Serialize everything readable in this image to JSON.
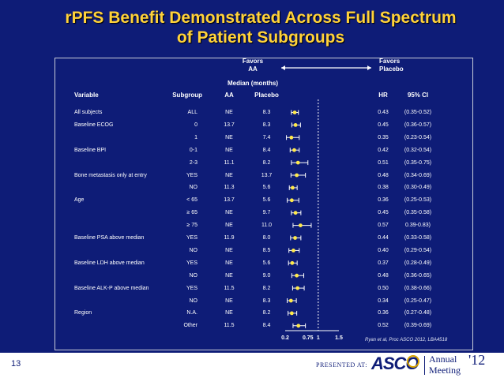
{
  "title": "rPFS Benefit Demonstrated Across Full Spectrum of Patient Subgroups",
  "favors_left": [
    "Favors",
    "AA"
  ],
  "favors_right": [
    "Favors",
    "Placebo"
  ],
  "median_header": "Median (months)",
  "columns": {
    "variable": "Variable",
    "subgroup": "Subgroup",
    "aa": "AA",
    "placebo": "Placebo",
    "hr": "HR",
    "ci": "95% CI"
  },
  "rows": [
    {
      "variable": "All subjects",
      "subgroup": "ALL",
      "aa": "NE",
      "placebo": "8.3",
      "hr": "0.43",
      "ci": "(0.35-0.52)",
      "hr_value": 0.43,
      "ci_low": 0.35,
      "ci_high": 0.52
    },
    {
      "variable": "Baseline ECOG",
      "subgroup": "0",
      "aa": "13.7",
      "placebo": "8.3",
      "hr": "0.45",
      "ci": "(0.36-0.57)",
      "hr_value": 0.45,
      "ci_low": 0.36,
      "ci_high": 0.57
    },
    {
      "variable": "",
      "subgroup": "1",
      "aa": "NE",
      "placebo": "7.4",
      "hr": "0.35",
      "ci": "(0.23-0.54)",
      "hr_value": 0.35,
      "ci_low": 0.23,
      "ci_high": 0.54
    },
    {
      "variable": "Baseline BPI",
      "subgroup": "0-1",
      "aa": "NE",
      "placebo": "8.4",
      "hr": "0.42",
      "ci": "(0.32-0.54)",
      "hr_value": 0.42,
      "ci_low": 0.32,
      "ci_high": 0.54
    },
    {
      "variable": "",
      "subgroup": "2-3",
      "aa": "11.1",
      "placebo": "8.2",
      "hr": "0.51",
      "ci": "(0.35-0.75)",
      "hr_value": 0.51,
      "ci_low": 0.35,
      "ci_high": 0.75
    },
    {
      "variable": "Bone metastasis only at entry",
      "subgroup": "YES",
      "aa": "NE",
      "placebo": "13.7",
      "hr": "0.48",
      "ci": "(0.34-0.69)",
      "hr_value": 0.48,
      "ci_low": 0.34,
      "ci_high": 0.69
    },
    {
      "variable": "",
      "subgroup": "NO",
      "aa": "11.3",
      "placebo": "5.6",
      "hr": "0.38",
      "ci": "(0.30-0.49)",
      "hr_value": 0.38,
      "ci_low": 0.3,
      "ci_high": 0.49
    },
    {
      "variable": "Age",
      "subgroup": "< 65",
      "aa": "13.7",
      "placebo": "5.6",
      "hr": "0.36",
      "ci": "(0.25-0.53)",
      "hr_value": 0.36,
      "ci_low": 0.25,
      "ci_high": 0.53
    },
    {
      "variable": "",
      "subgroup": "≥ 65",
      "aa": "NE",
      "placebo": "9.7",
      "hr": "0.45",
      "ci": "(0.35-0.58)",
      "hr_value": 0.45,
      "ci_low": 0.35,
      "ci_high": 0.58
    },
    {
      "variable": "",
      "subgroup": "≥ 75",
      "aa": "NE",
      "placebo": "11.0",
      "hr": "0.57",
      "ci": "0.39-0.83)",
      "hr_value": 0.57,
      "ci_low": 0.39,
      "ci_high": 0.83
    },
    {
      "variable": "Baseline PSA above median",
      "subgroup": "YES",
      "aa": "11.9",
      "placebo": "8.0",
      "hr": "0.44",
      "ci": "(0.33-0.58)",
      "hr_value": 0.44,
      "ci_low": 0.33,
      "ci_high": 0.58
    },
    {
      "variable": "",
      "subgroup": "NO",
      "aa": "NE",
      "placebo": "8.5",
      "hr": "0.40",
      "ci": "(0.29-0.54)",
      "hr_value": 0.4,
      "ci_low": 0.29,
      "ci_high": 0.54
    },
    {
      "variable": "Baseline LDH above median",
      "subgroup": "YES",
      "aa": "NE",
      "placebo": "5.6",
      "hr": "0.37",
      "ci": "(0.28-0.49)",
      "hr_value": 0.37,
      "ci_low": 0.28,
      "ci_high": 0.49
    },
    {
      "variable": "",
      "subgroup": "NO",
      "aa": "NE",
      "placebo": "9.0",
      "hr": "0.48",
      "ci": "(0.36-0.65)",
      "hr_value": 0.48,
      "ci_low": 0.36,
      "ci_high": 0.65
    },
    {
      "variable": "Baseline ALK-P above median",
      "subgroup": "YES",
      "aa": "11.5",
      "placebo": "8.2",
      "hr": "0.50",
      "ci": "(0.38-0.66)",
      "hr_value": 0.5,
      "ci_low": 0.38,
      "ci_high": 0.66
    },
    {
      "variable": "",
      "subgroup": "NO",
      "aa": "NE",
      "placebo": "8.3",
      "hr": "0.34",
      "ci": "(0.25-0.47)",
      "hr_value": 0.34,
      "ci_low": 0.25,
      "ci_high": 0.47
    },
    {
      "variable": "Region",
      "subgroup": "N.A.",
      "aa": "NE",
      "placebo": "8.2",
      "hr": "0.36",
      "ci": "(0.27-0.48)",
      "hr_value": 0.36,
      "ci_low": 0.27,
      "ci_high": 0.48
    },
    {
      "variable": "",
      "subgroup": "Other",
      "aa": "11.5",
      "placebo": "8.4",
      "hr": "0.52",
      "ci": "(0.39-0.69)",
      "hr_value": 0.52,
      "ci_low": 0.39,
      "ci_high": 0.69
    }
  ],
  "axis": {
    "range": [
      0.2,
      1.5
    ],
    "reference": 1,
    "ticks": [
      {
        "label": "0.2",
        "value": 0.2
      },
      {
        "label": "0.75",
        "value": 0.75
      },
      {
        "label": "1",
        "value": 1
      },
      {
        "label": "1.5",
        "value": 1.5
      }
    ]
  },
  "citation": "Ryan et al, Proc ASCO 2012, LBA4518",
  "footer": {
    "slide_number": "13",
    "presented_at": "PRESENTED AT:",
    "asco": "ASCO",
    "annual": "Annual",
    "meeting": "Meeting",
    "year": "'12"
  },
  "colors": {
    "background": "#0e1c77",
    "title": "#ffd23a",
    "marker": "#ffe94a",
    "text": "#ffffff"
  }
}
